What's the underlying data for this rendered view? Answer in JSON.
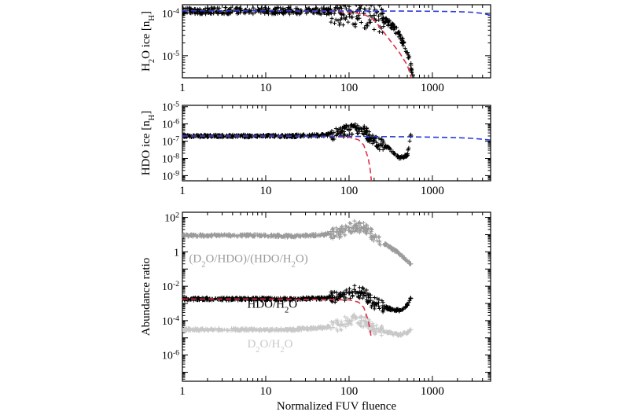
{
  "chart_data": [
    {
      "type": "scatter",
      "xlabel": "",
      "ylabel": "H2O ice [nH]",
      "ylabel_parts": {
        "main": "H",
        "sub1": "2",
        "rest": "O ice [n",
        "sub2": "H",
        "close": "]"
      },
      "x_scale": "log",
      "y_scale": "log",
      "xlim": [
        1,
        5000
      ],
      "ylim": [
        3e-06,
        0.00016
      ],
      "x_ticks": [
        1,
        10,
        100,
        1000
      ],
      "x_tick_labels": [
        "1",
        "10",
        "100",
        "1000"
      ],
      "y_ticks": [
        1e-05,
        0.0001
      ],
      "y_tick_labels": [
        {
          "base": "10",
          "exp": "-5"
        },
        {
          "base": "10",
          "exp": "-4"
        }
      ],
      "series": [
        {
          "style": "black-plus",
          "x": [
            1,
            2,
            5,
            10,
            20,
            50,
            100,
            150,
            200,
            250,
            300,
            350,
            400,
            450,
            500,
            550,
            580
          ],
          "y": [
            0.000115,
            0.000115,
            0.000115,
            0.000115,
            0.000115,
            0.000113,
            0.000108,
            0.0001,
            9e-05,
            7.5e-05,
            6e-05,
            4.5e-05,
            3.2e-05,
            2e-05,
            1.2e-05,
            6e-06,
            3.5e-06
          ]
        },
        {
          "style": "red-dashed",
          "x": [
            1,
            10,
            50,
            100,
            130,
            160,
            200,
            250,
            300,
            400,
            500,
            560
          ],
          "y": [
            0.000115,
            0.000115,
            0.000113,
            0.000108,
            0.0001,
            9e-05,
            7e-05,
            4e-05,
            2.5e-05,
            1.2e-05,
            6e-06,
            3e-06
          ]
        },
        {
          "style": "blue-dashed",
          "x": [
            1,
            10,
            100,
            500,
            1000,
            2000,
            3000,
            4000,
            5000
          ],
          "y": [
            0.000115,
            0.000115,
            0.000114,
            0.000113,
            0.000112,
            0.00011,
            0.000106,
            0.0001,
            9e-05
          ]
        }
      ]
    },
    {
      "type": "scatter",
      "xlabel": "",
      "ylabel": "HDO ice [nH]",
      "ylabel_parts": {
        "main": "HDO ice [n",
        "sub": "H",
        "close": "]"
      },
      "x_scale": "log",
      "y_scale": "log",
      "xlim": [
        1,
        5000
      ],
      "ylim": [
        5e-10,
        1.2e-05
      ],
      "x_ticks": [
        1,
        10,
        100,
        1000
      ],
      "x_tick_labels": [
        "1",
        "10",
        "100",
        "1000"
      ],
      "y_ticks": [
        1e-09,
        1e-08,
        1e-07,
        1e-06,
        1e-05
      ],
      "y_tick_labels": [
        {
          "base": "10",
          "exp": "-9"
        },
        {
          "base": "10",
          "exp": "-8"
        },
        {
          "base": "10",
          "exp": "-7"
        },
        {
          "base": "10",
          "exp": "-6"
        },
        {
          "base": "10",
          "exp": "-5"
        }
      ],
      "series": [
        {
          "style": "black-plus",
          "x": [
            1,
            2,
            5,
            10,
            20,
            50,
            80,
            100,
            120,
            140,
            160,
            180,
            200,
            250,
            300,
            400,
            500,
            550
          ],
          "y": [
            2e-07,
            2e-07,
            2e-07,
            2e-07,
            2e-07,
            2.2e-07,
            3e-07,
            4.5e-07,
            6e-07,
            5e-07,
            3e-07,
            1.5e-07,
            1e-07,
            6e-08,
            4e-08,
            1e-08,
            1.5e-08,
            2e-07
          ]
        },
        {
          "style": "red-dashed",
          "x": [
            1,
            10,
            50,
            100,
            130,
            150,
            170,
            180,
            185
          ],
          "y": [
            2e-07,
            2e-07,
            1.9e-07,
            1.7e-07,
            1.2e-07,
            6e-08,
            1e-08,
            2e-09,
            5e-10
          ]
        },
        {
          "style": "blue-dashed",
          "x": [
            1,
            10,
            100,
            500,
            1000,
            2000,
            3000,
            4000,
            5000
          ],
          "y": [
            2e-07,
            2e-07,
            1.9e-07,
            1.8e-07,
            1.7e-07,
            1.6e-07,
            1.45e-07,
            1.3e-07,
            1.15e-07
          ]
        }
      ]
    },
    {
      "type": "scatter",
      "xlabel": "Normalized FUV fluence",
      "ylabel": "Abundance ratio",
      "x_scale": "log",
      "y_scale": "log",
      "xlim": [
        1,
        5000
      ],
      "ylim": [
        3e-08,
        200
      ],
      "x_ticks": [
        1,
        10,
        100,
        1000
      ],
      "x_tick_labels": [
        "1",
        "10",
        "100",
        "1000"
      ],
      "y_ticks": [
        1e-06,
        0.0001,
        0.01,
        1,
        100
      ],
      "y_tick_labels": [
        {
          "base": "10",
          "exp": "-6"
        },
        {
          "base": "10",
          "exp": "-4"
        },
        {
          "base": "10",
          "exp": "-2"
        },
        {
          "base": "1",
          "exp": ""
        },
        {
          "base": "10",
          "exp": "2"
        }
      ],
      "series": [
        {
          "name": "(D2O/HDO)/(HDO/H2O)",
          "style": "gray-plus",
          "color": "#9a9a9a",
          "x": [
            1,
            2,
            5,
            10,
            20,
            50,
            80,
            100,
            120,
            140,
            160,
            180,
            200,
            300,
            400,
            500,
            550
          ],
          "y": [
            9,
            9,
            9,
            9,
            8,
            10,
            15,
            25,
            30,
            25,
            20,
            12,
            8,
            2,
            0.8,
            0.3,
            0.2
          ]
        },
        {
          "name": "HDO/H2O",
          "style": "black-plus",
          "color": "#000000",
          "x": [
            1,
            2,
            5,
            10,
            20,
            50,
            80,
            100,
            120,
            140,
            160,
            180,
            200,
            300,
            400,
            500,
            550
          ],
          "y": [
            0.0018,
            0.0018,
            0.0018,
            0.0018,
            0.0018,
            0.002,
            0.0028,
            0.004,
            0.005,
            0.0045,
            0.003,
            0.0015,
            0.001,
            0.0005,
            0.0004,
            0.0008,
            0.002
          ]
        },
        {
          "name": "D2O/H2O",
          "style": "lightgray-plus",
          "color": "#c8c8c8",
          "x": [
            1,
            2,
            5,
            10,
            20,
            50,
            80,
            100,
            120,
            140,
            160,
            180,
            200,
            300,
            400,
            500,
            550
          ],
          "y": [
            3e-05,
            3e-05,
            3e-05,
            3e-05,
            3e-05,
            4e-05,
            6e-05,
            0.0001,
            0.00015,
            0.0001,
            8e-05,
            5e-05,
            3e-05,
            2e-05,
            1.5e-05,
            2e-05,
            3e-05
          ]
        },
        {
          "style": "red-dashed",
          "x": [
            1,
            10,
            50,
            100,
            130,
            150,
            170,
            185
          ],
          "y": [
            0.0018,
            0.0018,
            0.0017,
            0.0016,
            0.0012,
            0.0006,
            0.0001,
            1e-05
          ]
        }
      ],
      "annotations": [
        {
          "text": "(D2O/HDO)/(HDO/H2O)",
          "x": 1.2,
          "y": 0.25,
          "color": "#9a9a9a",
          "parts": [
            [
              "(D",
              ""
            ],
            [
              "2",
              "sub"
            ],
            [
              "O/HDO)/(HDO/H",
              ""
            ],
            [
              "2",
              "sub"
            ],
            [
              "O)",
              ""
            ]
          ]
        },
        {
          "text": "HDO/H2O",
          "x": 6,
          "y": 0.00055,
          "color": "#000000",
          "parts": [
            [
              "HDO/H",
              ""
            ],
            [
              "2",
              "sub"
            ],
            [
              "O",
              ""
            ]
          ]
        },
        {
          "text": "D2O/H2O",
          "x": 6,
          "y": 2.8e-06,
          "color": "#c8c8c8",
          "parts": [
            [
              "D",
              ""
            ],
            [
              "2",
              "sub"
            ],
            [
              "O/H",
              ""
            ],
            [
              "2",
              "sub"
            ],
            [
              "O",
              ""
            ]
          ]
        }
      ]
    }
  ]
}
